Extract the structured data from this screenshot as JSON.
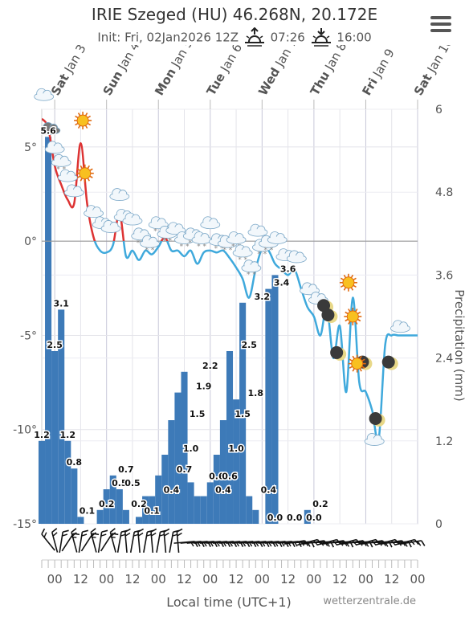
{
  "header": {
    "title": "IRIE Szeged (HU) 46.268N, 20.172E",
    "init": "Init: Fri, 02Jan2026 12Z",
    "sunrise": "07:26",
    "sunset": "16:00",
    "sunrise_icon": "sunrise-icon",
    "sunset_icon": "sunset-icon",
    "menu_icon": "hamburger-menu-icon"
  },
  "chart_data": {
    "type": "line+bar",
    "xlabel": "Local time (UTC+1)",
    "ylabel_right": "Precipitation (mm)",
    "y_left_ticks": [
      "5°",
      "0°",
      "-5°",
      "-10°",
      "-15°"
    ],
    "y_left_range": [
      -15,
      7
    ],
    "y_right_ticks": [
      "6",
      "4.8",
      "3.6",
      "2.4",
      "1.2",
      "0"
    ],
    "y_right_range": [
      0,
      6
    ],
    "day_labels": [
      {
        "wd": "Sat",
        "md": "Jan 3"
      },
      {
        "wd": "Sun",
        "md": "Jan 4"
      },
      {
        "wd": "Mon",
        "md": "Jan 5"
      },
      {
        "wd": "Tue",
        "md": "Jan 6"
      },
      {
        "wd": "Wed",
        "md": "Jan 7"
      },
      {
        "wd": "Thu",
        "md": "Jan 8"
      },
      {
        "wd": "Fri",
        "md": "Jan 9"
      },
      {
        "wd": "Sat",
        "md": "Jan 10"
      }
    ],
    "x_tick_labels": [
      "00",
      "12",
      "00",
      "12",
      "00",
      "12",
      "00",
      "12",
      "00",
      "12",
      "00",
      "12",
      "00",
      "12",
      "00"
    ],
    "grid": true,
    "colors": {
      "bar": "#3d7ab8",
      "temp_warm": "#dd3333",
      "temp_cold": "#3fa9dc",
      "zero_line": "#999999"
    },
    "precipitation": {
      "hours": [
        -6,
        -3,
        0,
        3,
        6,
        9,
        12,
        15,
        18,
        21,
        24,
        27,
        30,
        33,
        36,
        39,
        42,
        45,
        48,
        51,
        54,
        57,
        60,
        63,
        66,
        69,
        72,
        75,
        78,
        81,
        84,
        87,
        90,
        93,
        96,
        99,
        102,
        105,
        108,
        111,
        114,
        117,
        120,
        123,
        126,
        129,
        132,
        135,
        138,
        141,
        144,
        147,
        150,
        153,
        156,
        159,
        162,
        165,
        168,
        171
      ],
      "values": [
        1.2,
        5.6,
        2.5,
        3.1,
        1.2,
        0.8,
        0.1,
        0,
        0,
        0.2,
        0.5,
        0.7,
        0.5,
        0.2,
        0,
        0.1,
        0.4,
        0.4,
        0.7,
        1.0,
        1.5,
        1.9,
        2.2,
        0.6,
        0.4,
        0.4,
        0.6,
        1.0,
        1.5,
        2.5,
        1.8,
        3.2,
        0.4,
        0.2,
        0,
        3.4,
        3.6,
        0,
        0,
        0,
        0,
        0.2,
        0,
        0,
        0,
        0,
        0,
        0,
        0,
        0,
        0,
        0,
        0,
        0,
        0,
        0,
        0,
        0,
        0,
        0
      ],
      "labels": [
        {
          "h": -6,
          "v": 1.2,
          "t": "1.2"
        },
        {
          "h": -3,
          "v": 5.6,
          "t": "5.6"
        },
        {
          "h": 0,
          "v": 2.5,
          "t": "2.5"
        },
        {
          "h": 3,
          "v": 3.1,
          "t": "3.1"
        },
        {
          "h": 6,
          "v": 1.2,
          "t": "1.2"
        },
        {
          "h": 9,
          "v": 0.8,
          "t": "0.8"
        },
        {
          "h": 15,
          "v": 0.1,
          "t": "0.1"
        },
        {
          "h": 24,
          "v": 0.2,
          "t": "0.2"
        },
        {
          "h": 30,
          "v": 0.5,
          "t": "0.5"
        },
        {
          "h": 33,
          "v": 0.7,
          "t": "0.7"
        },
        {
          "h": 36,
          "v": 0.5,
          "t": "0.5"
        },
        {
          "h": 39,
          "v": 0.2,
          "t": "0.2"
        },
        {
          "h": 45,
          "v": 0.1,
          "t": "0.1"
        },
        {
          "h": 54,
          "v": 0.4,
          "t": "0.4"
        },
        {
          "h": 60,
          "v": 0.7,
          "t": "0.7"
        },
        {
          "h": 63,
          "v": 1.0,
          "t": "1.0"
        },
        {
          "h": 66,
          "v": 1.5,
          "t": "1.5"
        },
        {
          "h": 69,
          "v": 1.9,
          "t": "1.9"
        },
        {
          "h": 72,
          "v": 2.2,
          "t": "2.2"
        },
        {
          "h": 75,
          "v": 0.6,
          "t": "0.6"
        },
        {
          "h": 78,
          "v": 0.4,
          "t": "0.4"
        },
        {
          "h": 81,
          "v": 0.6,
          "t": "0.6"
        },
        {
          "h": 84,
          "v": 1.0,
          "t": "1.0"
        },
        {
          "h": 87,
          "v": 1.5,
          "t": "1.5"
        },
        {
          "h": 90,
          "v": 2.5,
          "t": "2.5"
        },
        {
          "h": 93,
          "v": 1.8,
          "t": "1.8"
        },
        {
          "h": 96,
          "v": 3.2,
          "t": "3.2"
        },
        {
          "h": 99,
          "v": 0.4,
          "t": "0.4"
        },
        {
          "h": 102,
          "v": 0.0,
          "t": "0.0"
        },
        {
          "h": 105,
          "v": 3.4,
          "t": "3.4"
        },
        {
          "h": 108,
          "v": 3.6,
          "t": "3.6"
        },
        {
          "h": 111,
          "v": 0.0,
          "t": "0.0"
        },
        {
          "h": 120,
          "v": 0.0,
          "t": "0.0"
        },
        {
          "h": 123,
          "v": 0.2,
          "t": "0.2"
        }
      ]
    },
    "temperature": {
      "hours": [
        -6,
        -3,
        0,
        3,
        6,
        9,
        12,
        15,
        18,
        21,
        24,
        27,
        30,
        33,
        36,
        39,
        42,
        45,
        48,
        51,
        54,
        57,
        60,
        63,
        66,
        69,
        72,
        75,
        78,
        81,
        84,
        87,
        90,
        93,
        96,
        99,
        102,
        105,
        108,
        111,
        114,
        117,
        120,
        123,
        126,
        129,
        132,
        135,
        138,
        141,
        144,
        147,
        150,
        153,
        156,
        159,
        162,
        165,
        168,
        171
      ],
      "values": [
        6.5,
        6.0,
        4.0,
        3.0,
        2.2,
        2.0,
        5.2,
        2.0,
        0.2,
        -0.5,
        -0.6,
        -0.2,
        1.5,
        -0.8,
        -0.5,
        -1.0,
        -0.5,
        -0.7,
        -0.3,
        0.2,
        -0.5,
        -0.5,
        -0.8,
        -0.5,
        -1.2,
        -0.6,
        -0.5,
        -0.6,
        -0.5,
        -0.9,
        -1.4,
        -2.0,
        -3.0,
        -1.5,
        -0.4,
        -0.5,
        -1.2,
        -1.5,
        -1.8,
        -1.5,
        -2.5,
        -3.5,
        -4.0,
        -5.0,
        -3.5,
        -6.2,
        -4.5,
        -8.0,
        -3.0,
        -7.5,
        -8.0,
        -9.0,
        -10.5,
        -5.5,
        -5.0,
        -5.0,
        -5.0,
        -5.0,
        -5.0,
        -5.0
      ]
    },
    "weather_icons": [
      {
        "h": -5,
        "t": 7.8,
        "icon": "cloud-icon"
      },
      {
        "h": -2,
        "t": 6.0,
        "icon": "dark-cloud-icon"
      },
      {
        "h": 0,
        "t": 5.0,
        "icon": "cloud-icon"
      },
      {
        "h": 3,
        "t": 4.3,
        "icon": "cloud-snow-icon"
      },
      {
        "h": 6,
        "t": 3.5,
        "icon": "cloud-icon"
      },
      {
        "h": 9,
        "t": 2.7,
        "icon": "cloud-icon"
      },
      {
        "h": 13,
        "t": 6.4,
        "icon": "sun-icon"
      },
      {
        "h": 14,
        "t": 3.6,
        "icon": "sun-icon"
      },
      {
        "h": 18,
        "t": 1.6,
        "icon": "cloud-icon"
      },
      {
        "h": 22,
        "t": 1.0,
        "icon": "cloud-icon"
      },
      {
        "h": 26,
        "t": 0.8,
        "icon": "cloud-icon"
      },
      {
        "h": 30,
        "t": 2.5,
        "icon": "cloud-icon"
      },
      {
        "h": 32,
        "t": 1.4,
        "icon": "cloud-icon"
      },
      {
        "h": 36,
        "t": 1.2,
        "icon": "cloud-icon"
      },
      {
        "h": 40,
        "t": 0.4,
        "icon": "cloud-snow-icon"
      },
      {
        "h": 44,
        "t": 0.0,
        "icon": "cloud-snow-icon"
      },
      {
        "h": 48,
        "t": 1.0,
        "icon": "cloud-snow-icon"
      },
      {
        "h": 52,
        "t": 0.5,
        "icon": "cloud-snow-icon"
      },
      {
        "h": 56,
        "t": 0.7,
        "icon": "cloud-icon"
      },
      {
        "h": 60,
        "t": 0.2,
        "icon": "cloud-snow-icon"
      },
      {
        "h": 64,
        "t": 0.4,
        "icon": "cloud-snow-icon"
      },
      {
        "h": 68,
        "t": 0.2,
        "icon": "cloud-snow-icon"
      },
      {
        "h": 72,
        "t": 1.0,
        "icon": "cloud-icon"
      },
      {
        "h": 76,
        "t": 0.1,
        "icon": "cloud-snow-icon"
      },
      {
        "h": 80,
        "t": 0.0,
        "icon": "cloud-snow-icon"
      },
      {
        "h": 84,
        "t": 0.2,
        "icon": "cloud-snow-icon"
      },
      {
        "h": 87,
        "t": -0.5,
        "icon": "cloud-snow-icon"
      },
      {
        "h": 91,
        "t": -1.3,
        "icon": "cloud-snow-icon"
      },
      {
        "h": 94,
        "t": 0.6,
        "icon": "cloud-icon"
      },
      {
        "h": 96,
        "t": -0.2,
        "icon": "cloud-snow-icon"
      },
      {
        "h": 99,
        "t": 0.0,
        "icon": "cloud-snow-icon"
      },
      {
        "h": 103,
        "t": 0.2,
        "icon": "cloud-icon"
      },
      {
        "h": 107,
        "t": -0.7,
        "icon": "cloud-icon"
      },
      {
        "h": 112,
        "t": -0.8,
        "icon": "cloud-icon"
      },
      {
        "h": 118,
        "t": -2.5,
        "icon": "cloud-icon"
      },
      {
        "h": 122,
        "t": -3.0,
        "icon": "cloud-icon"
      },
      {
        "h": 126,
        "t": -3.5,
        "icon": "moon-icon"
      },
      {
        "h": 128,
        "t": -4.0,
        "icon": "moon-icon"
      },
      {
        "h": 136,
        "t": -2.2,
        "icon": "sun-icon"
      },
      {
        "h": 138,
        "t": -4.0,
        "icon": "sun-icon"
      },
      {
        "h": 132,
        "t": -6.0,
        "icon": "moon-icon"
      },
      {
        "h": 144,
        "t": -6.5,
        "icon": "moon-icon"
      },
      {
        "h": 140,
        "t": -6.5,
        "icon": "sun-icon"
      },
      {
        "h": 156,
        "t": -6.5,
        "icon": "moon-icon"
      },
      {
        "h": 150,
        "t": -9.5,
        "icon": "moon-icon"
      },
      {
        "h": 160,
        "t": -4.5,
        "icon": "cloud-icon"
      },
      {
        "h": 148,
        "t": -10.5,
        "icon": "cloud-icon"
      }
    ]
  },
  "footer": {
    "credit": "wetterzentrale.de"
  }
}
